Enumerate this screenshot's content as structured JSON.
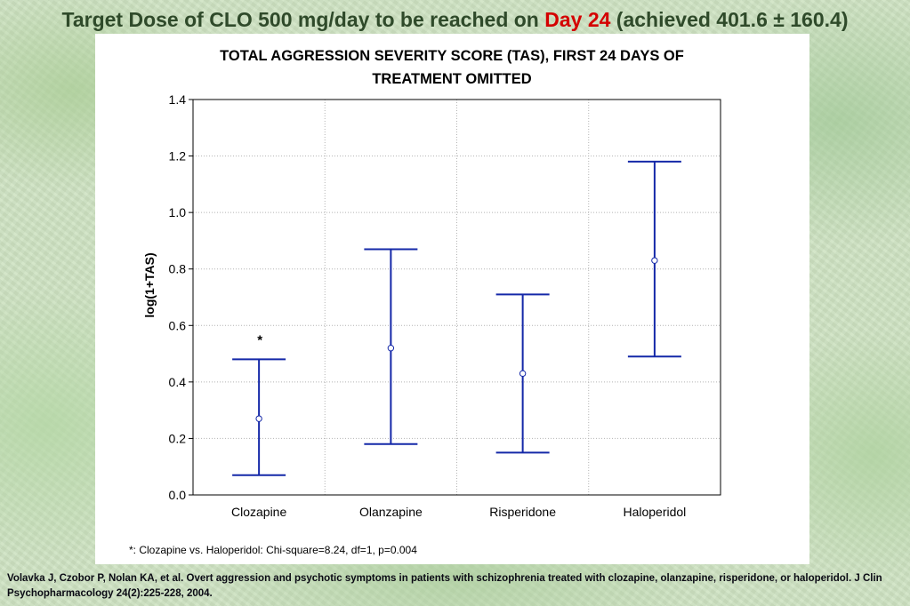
{
  "slide": {
    "title_part1": "Target Dose of CLO 500 mg/day to be reached on ",
    "title_highlight": "Day 24",
    "title_part2": " (achieved 401.6 ± 160.4)",
    "citation": "Volavka J, Czobor P, Nolan KA, et al. Overt aggression and psychotic symptoms in patients with schizophrenia treated with clozapine, olanzapine, risperidone, or haloperidol. J Clin Psychopharmacology 24(2):225-228, 2004."
  },
  "colors": {
    "title": "#2f4a2a",
    "highlight": "#d40000",
    "series": "#1428a8",
    "grid": "#b4b4b4"
  },
  "chart_data": {
    "type": "errorbar",
    "title_line1": "TOTAL AGGRESSION SEVERITY SCORE (TAS), FIRST 24 DAYS OF",
    "title_line2": "TREATMENT OMITTED",
    "xlabel": "",
    "ylabel": "log(1+TAS)",
    "categories": [
      "Clozapine",
      "Olanzapine",
      "Risperidone",
      "Haloperidol"
    ],
    "mean": [
      0.27,
      0.52,
      0.43,
      0.83
    ],
    "lower": [
      0.07,
      0.18,
      0.15,
      0.49
    ],
    "upper": [
      0.48,
      0.87,
      0.71,
      1.18
    ],
    "ylim": [
      0,
      1.4
    ],
    "yticks": [
      "0.0",
      "0.2",
      "0.4",
      "0.6",
      "0.8",
      "1.0",
      "1.2",
      "1.4"
    ],
    "grid": true,
    "annotation": {
      "category": "Clozapine",
      "label": "*"
    },
    "footnote": "*: Clozapine vs. Haloperidol:  Chi-square=8.24, df=1, p=0.004"
  }
}
